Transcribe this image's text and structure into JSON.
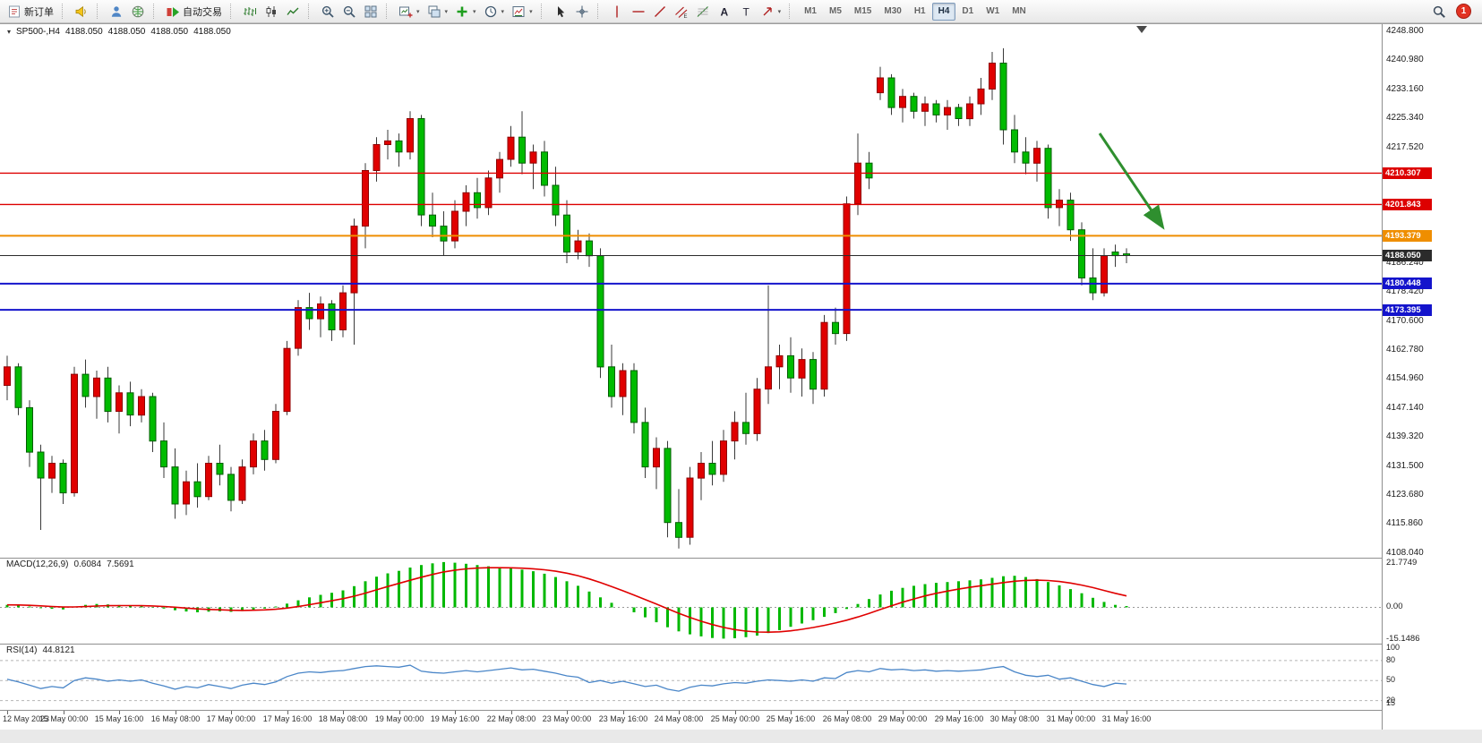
{
  "toolbar": {
    "groups": [
      {
        "items": [
          {
            "name": "new-order-button",
            "icon": "new-order-icon",
            "label": "新订单"
          }
        ]
      },
      {
        "items": [
          {
            "name": "sound-alert-button",
            "icon": "horn-icon"
          }
        ]
      },
      {
        "items": [
          {
            "name": "user-profile-button",
            "icon": "profile-icon"
          },
          {
            "name": "market-overview-button",
            "icon": "globe-icon"
          }
        ]
      },
      {
        "items": [
          {
            "name": "autotrade-button",
            "icon": "autotrade-icon",
            "label": "自动交易"
          }
        ]
      },
      {
        "items": [
          {
            "name": "bar-chart-button",
            "icon": "bar-chart-icon"
          },
          {
            "name": "candlestick-chart-button",
            "icon": "candlestick-icon"
          },
          {
            "name": "line-chart-button",
            "icon": "line-chart-icon"
          }
        ]
      },
      {
        "items": [
          {
            "name": "zoom-in-button",
            "icon": "zoom-in-icon"
          },
          {
            "name": "zoom-out-button",
            "icon": "zoom-out-icon"
          },
          {
            "name": "tile-windows-button",
            "icon": "tile-windows-icon"
          }
        ]
      },
      {
        "items": [
          {
            "name": "new-chart-button",
            "icon": "new-chart-icon",
            "caret": true
          },
          {
            "name": "profiles-button",
            "icon": "cascade-icon",
            "caret": true
          },
          {
            "name": "add-indicator-button",
            "icon": "add-indicator-icon",
            "caret": true
          },
          {
            "name": "periods-button",
            "icon": "periods-icon",
            "caret": true
          },
          {
            "name": "templates-button",
            "icon": "templates-icon",
            "caret": true
          }
        ]
      },
      {
        "items": [
          {
            "name": "cursor-button",
            "icon": "cursor-icon"
          },
          {
            "name": "crosshair-button",
            "icon": "crosshair-icon"
          }
        ]
      },
      {
        "items": [
          {
            "name": "vertical-line-button",
            "icon": "vline-icon"
          },
          {
            "name": "horizontal-line-button",
            "icon": "hline-icon"
          },
          {
            "name": "trendline-button",
            "icon": "trendline-icon"
          },
          {
            "name": "channel-button",
            "icon": "channel-icon"
          },
          {
            "name": "fibonacci-button",
            "icon": "fibo-icon"
          },
          {
            "name": "text-button",
            "icon": "text-icon"
          },
          {
            "name": "label-button",
            "icon": "label-icon"
          },
          {
            "name": "arrows-button",
            "icon": "arrows-icon",
            "caret": true
          }
        ]
      }
    ],
    "timeframes": {
      "items": [
        "M1",
        "M5",
        "M15",
        "M30",
        "H1",
        "H4",
        "D1",
        "W1",
        "MN"
      ],
      "active": "H4"
    },
    "right": {
      "notification_badge": "1"
    }
  },
  "chart": {
    "title": {
      "symbol_period": "SP500-,H4",
      "open": "4188.050",
      "high": "4188.050",
      "low": "4188.050",
      "close": "4188.050"
    }
  },
  "chart_data": {
    "type": "candlestick",
    "symbol": "SP500-",
    "timeframe": "H4",
    "price": {
      "ylim": [
        4106.5,
        4250.5
      ],
      "candles": [
        [
          4153,
          4161,
          4149,
          4158
        ],
        [
          4158,
          4159,
          4145,
          4147
        ],
        [
          4147,
          4149,
          4131,
          4135
        ],
        [
          4135,
          4137,
          4114,
          4128
        ],
        [
          4128,
          4134,
          4124,
          4132
        ],
        [
          4132,
          4133,
          4121,
          4124
        ],
        [
          4124,
          4158,
          4123,
          4156
        ],
        [
          4156,
          4160,
          4147,
          4150
        ],
        [
          4150,
          4157,
          4144,
          4155
        ],
        [
          4155,
          4158,
          4143,
          4146
        ],
        [
          4146,
          4153,
          4140,
          4151
        ],
        [
          4151,
          4154,
          4142,
          4145
        ],
        [
          4145,
          4152,
          4143,
          4150
        ],
        [
          4150,
          4151,
          4135,
          4138
        ],
        [
          4138,
          4143,
          4128,
          4131
        ],
        [
          4131,
          4136,
          4117,
          4121
        ],
        [
          4121,
          4130,
          4118,
          4127
        ],
        [
          4127,
          4132,
          4120,
          4123
        ],
        [
          4123,
          4134,
          4122,
          4132
        ],
        [
          4132,
          4137,
          4126,
          4129
        ],
        [
          4129,
          4131,
          4119,
          4122
        ],
        [
          4122,
          4133,
          4121,
          4131
        ],
        [
          4131,
          4140,
          4129,
          4138
        ],
        [
          4138,
          4141,
          4130,
          4133
        ],
        [
          4133,
          4148,
          4132,
          4146
        ],
        [
          4146,
          4165,
          4145,
          4163
        ],
        [
          4163,
          4176,
          4161,
          4174
        ],
        [
          4174,
          4178,
          4168,
          4171
        ],
        [
          4171,
          4177,
          4166,
          4175
        ],
        [
          4175,
          4176,
          4165,
          4168
        ],
        [
          4168,
          4180,
          4166,
          4178
        ],
        [
          4178,
          4198,
          4164,
          4196
        ],
        [
          4196,
          4213,
          4190,
          4211
        ],
        [
          4211,
          4220,
          4208,
          4218
        ],
        [
          4218,
          4222,
          4214,
          4219
        ],
        [
          4219,
          4221,
          4212,
          4216
        ],
        [
          4216,
          4227,
          4214,
          4225
        ],
        [
          4225,
          4226,
          4196,
          4199
        ],
        [
          4199,
          4205,
          4193,
          4196
        ],
        [
          4196,
          4200,
          4188,
          4192
        ],
        [
          4192,
          4203,
          4190,
          4200
        ],
        [
          4200,
          4207,
          4196,
          4205
        ],
        [
          4205,
          4209,
          4198,
          4201
        ],
        [
          4201,
          4211,
          4199,
          4209
        ],
        [
          4209,
          4216,
          4205,
          4214
        ],
        [
          4214,
          4223,
          4212,
          4220
        ],
        [
          4220,
          4227,
          4210,
          4213
        ],
        [
          4213,
          4218,
          4206,
          4216
        ],
        [
          4216,
          4219,
          4204,
          4207
        ],
        [
          4207,
          4212,
          4196,
          4199
        ],
        [
          4199,
          4203,
          4186,
          4189
        ],
        [
          4189,
          4195,
          4187,
          4192
        ],
        [
          4192,
          4194,
          4185,
          4188
        ],
        [
          4188,
          4190,
          4155,
          4158
        ],
        [
          4158,
          4164,
          4147,
          4150
        ],
        [
          4150,
          4159,
          4145,
          4157
        ],
        [
          4157,
          4159,
          4140,
          4143
        ],
        [
          4143,
          4147,
          4128,
          4131
        ],
        [
          4131,
          4139,
          4125,
          4136
        ],
        [
          4136,
          4138,
          4112,
          4116
        ],
        [
          4116,
          4125,
          4109,
          4112
        ],
        [
          4112,
          4131,
          4110,
          4128
        ],
        [
          4128,
          4135,
          4122,
          4132
        ],
        [
          4132,
          4138,
          4126,
          4129
        ],
        [
          4129,
          4141,
          4127,
          4138
        ],
        [
          4138,
          4146,
          4133,
          4143
        ],
        [
          4143,
          4151,
          4137,
          4140
        ],
        [
          4140,
          4155,
          4138,
          4152
        ],
        [
          4152,
          4180,
          4148,
          4158
        ],
        [
          4158,
          4164,
          4152,
          4161
        ],
        [
          4161,
          4166,
          4151,
          4155
        ],
        [
          4155,
          4163,
          4150,
          4160
        ],
        [
          4160,
          4162,
          4148,
          4152
        ],
        [
          4152,
          4172,
          4150,
          4170
        ],
        [
          4170,
          4174,
          4164,
          4167
        ],
        [
          4167,
          4204,
          4165,
          4202
        ],
        [
          4202,
          4221,
          4199,
          4213
        ],
        [
          4213,
          4216,
          4206,
          4209
        ],
        [
          4232,
          4239,
          4230,
          4236
        ],
        [
          4236,
          4237,
          4226,
          4228
        ],
        [
          4228,
          4233,
          4224,
          4231
        ],
        [
          4231,
          4232,
          4225,
          4227
        ],
        [
          4227,
          4231,
          4223,
          4229
        ],
        [
          4229,
          4230,
          4224,
          4226
        ],
        [
          4226,
          4230,
          4222,
          4228
        ],
        [
          4228,
          4229,
          4223,
          4225
        ],
        [
          4225,
          4231,
          4223,
          4229
        ],
        [
          4229,
          4236,
          4226,
          4233
        ],
        [
          4233,
          4243,
          4230,
          4240
        ],
        [
          4240,
          4244,
          4218,
          4222
        ],
        [
          4222,
          4226,
          4213,
          4216
        ],
        [
          4216,
          4220,
          4210,
          4213
        ],
        [
          4213,
          4219,
          4208,
          4217
        ],
        [
          4217,
          4218,
          4198,
          4201
        ],
        [
          4201,
          4206,
          4196,
          4203
        ],
        [
          4203,
          4205,
          4192,
          4195
        ],
        [
          4195,
          4197,
          4180,
          4182
        ],
        [
          4182,
          4190,
          4176,
          4178
        ],
        [
          4178,
          4190,
          4177,
          4188
        ],
        [
          4189,
          4191,
          4185,
          4188
        ],
        [
          4188.5,
          4190,
          4186,
          4188.05
        ]
      ]
    },
    "horizontal_lines": [
      {
        "price": 4210.307,
        "label": "4210.307",
        "color": "#dd0000",
        "width": 1.4
      },
      {
        "price": 4201.843,
        "label": "4201.843",
        "color": "#dd0000",
        "width": 1.4
      },
      {
        "price": 4193.379,
        "label": "4193.379",
        "color": "#ef8e00",
        "width": 2
      },
      {
        "price": 4188.05,
        "label": "4188.050",
        "color": "#2b2b2b",
        "width": 1
      },
      {
        "price": 4180.448,
        "label": "4180.448",
        "color": "#1414cc",
        "width": 2
      },
      {
        "price": 4173.395,
        "label": "4173.395",
        "color": "#1414cc",
        "width": 2
      }
    ],
    "price_axis_ticks": [
      "4248.800",
      "4240.980",
      "4233.160",
      "4225.340",
      "4217.520",
      "4209.700",
      "4201.880",
      "4194.060",
      "4186.240",
      "4178.420",
      "4170.600",
      "4162.780",
      "4154.960",
      "4147.140",
      "4139.320",
      "4131.500",
      "4123.680",
      "4115.860",
      "4108.040"
    ],
    "time_labels": [
      "12 May 2023",
      "15 May 00:00",
      "15 May 16:00",
      "16 May 08:00",
      "17 May 00:00",
      "17 May 16:00",
      "18 May 08:00",
      "19 May 00:00",
      "19 May 16:00",
      "22 May 08:00",
      "23 May 00:00",
      "23 May 16:00",
      "24 May 08:00",
      "25 May 00:00",
      "25 May 16:00",
      "26 May 08:00",
      "29 May 00:00",
      "29 May 16:00",
      "30 May 08:00",
      "31 May 00:00",
      "31 May 16:00"
    ],
    "macd": {
      "label": "MACD(12,26,9)",
      "main_value": "0.6084",
      "signal_value": "7.5691",
      "axis": [
        "21.7749",
        "0.00",
        "-15.1486"
      ],
      "ylim": [
        -17.5,
        23.5
      ],
      "values": [
        1.2,
        0.9,
        0.4,
        -0.4,
        -0.7,
        -1.0,
        0.3,
        1.2,
        1.6,
        1.4,
        1.1,
        0.8,
        0.6,
        0.2,
        -0.6,
        -1.4,
        -2.0,
        -2.4,
        -2.1,
        -1.9,
        -2.2,
        -1.8,
        -1.1,
        -0.6,
        0.4,
        1.8,
        3.4,
        4.8,
        6.0,
        7.0,
        8.2,
        10.2,
        12.6,
        14.8,
        16.4,
        17.6,
        19.2,
        20.4,
        21.2,
        21.8,
        21.5,
        21.0,
        20.4,
        19.8,
        19.2,
        18.8,
        18.2,
        17.4,
        16.2,
        14.6,
        12.6,
        10.4,
        7.6,
        4.8,
        2.2,
        0.0,
        -2.4,
        -4.8,
        -7.2,
        -9.6,
        -11.6,
        -13.0,
        -14.0,
        -14.8,
        -15.1,
        -14.9,
        -14.4,
        -13.6,
        -12.4,
        -11.0,
        -9.4,
        -7.8,
        -6.2,
        -4.6,
        -2.8,
        -0.8,
        1.6,
        4.0,
        6.2,
        8.0,
        9.4,
        10.4,
        11.2,
        11.8,
        12.2,
        12.6,
        13.0,
        13.5,
        14.2,
        15.0,
        15.2,
        14.6,
        13.6,
        12.2,
        10.6,
        8.8,
        6.8,
        4.6,
        2.6,
        1.2,
        0.61
      ]
    },
    "rsi": {
      "label": "RSI(14)",
      "value": "44.8121",
      "axis": [
        "100",
        "80",
        "50",
        "20",
        "15"
      ],
      "levels": [
        80,
        50,
        20
      ],
      "ylim": [
        10,
        100
      ],
      "values": [
        52,
        48,
        43,
        38,
        41,
        39,
        50,
        54,
        52,
        49,
        51,
        49,
        51,
        46,
        42,
        37,
        41,
        39,
        44,
        41,
        38,
        43,
        46,
        44,
        48,
        56,
        61,
        63,
        62,
        64,
        65,
        68,
        71,
        72,
        71,
        70,
        73,
        64,
        62,
        61,
        63,
        65,
        63,
        65,
        67,
        69,
        66,
        67,
        64,
        61,
        57,
        55,
        47,
        50,
        46,
        49,
        45,
        41,
        43,
        37,
        34,
        40,
        43,
        42,
        45,
        47,
        46,
        49,
        51,
        50,
        49,
        51,
        49,
        54,
        53,
        62,
        65,
        63,
        68,
        66,
        67,
        65,
        66,
        64,
        65,
        64,
        65,
        66,
        69,
        71,
        63,
        58,
        56,
        58,
        52,
        54,
        49,
        44,
        41,
        46,
        44.81
      ]
    },
    "annotation_arrow": {
      "x1_frac": 0.796,
      "price1": 4221,
      "x2_frac": 0.841,
      "price2": 4196,
      "color": "#2f8f2f"
    },
    "shift_marker_frac": 0.826,
    "colors": {
      "up": "#e00000",
      "up_border": "#8e0000",
      "down": "#00bb00",
      "down_border": "#005e00",
      "wick": "#3a3a3a",
      "macd_bar": "#00b800",
      "macd_signal": "#e00000",
      "rsi_line": "#4a86c8",
      "level_dash": "#b5b5b5"
    }
  }
}
